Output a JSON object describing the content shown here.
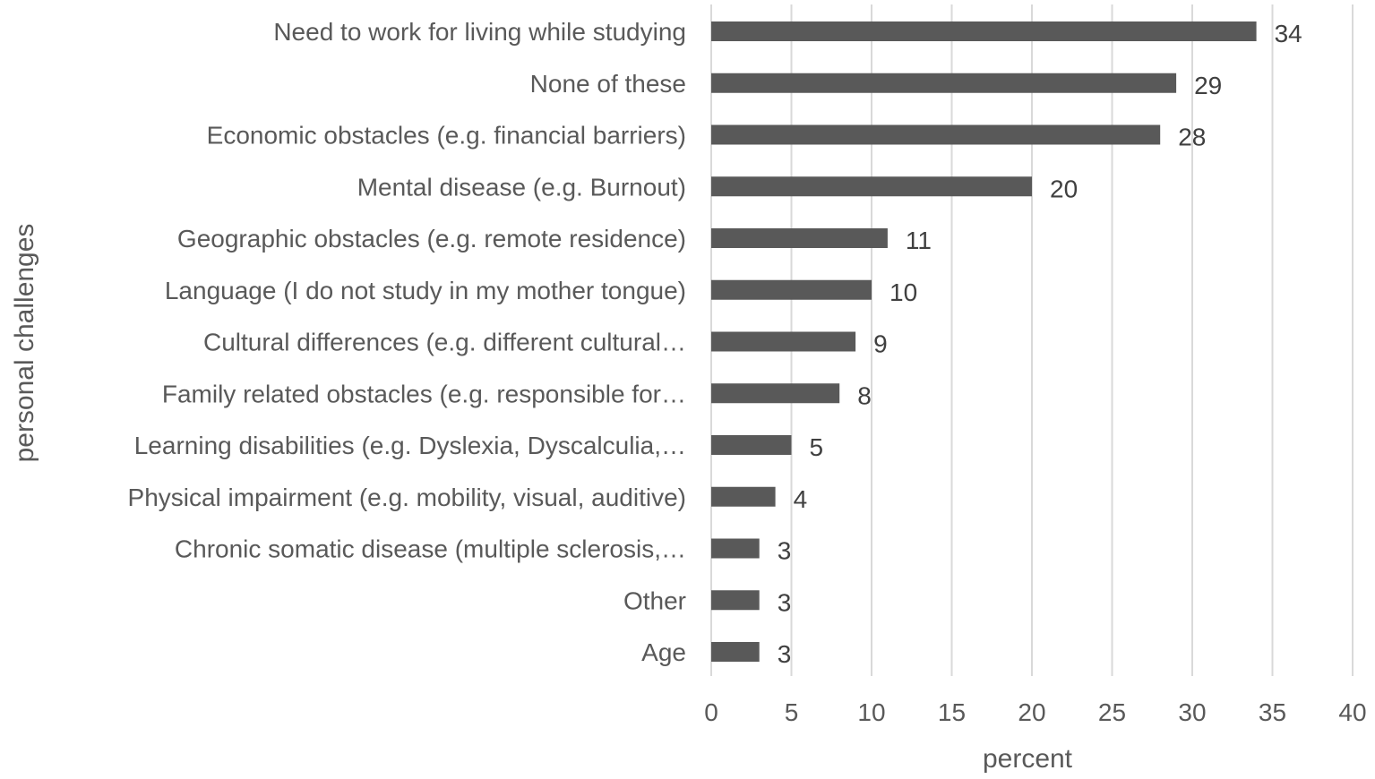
{
  "chart_data": {
    "type": "bar",
    "orientation": "horizontal",
    "categories": [
      "Need to work for living while studying",
      "None of these",
      "Economic obstacles (e.g. financial barriers)",
      "Mental disease (e.g. Burnout)",
      "Geographic obstacles (e.g. remote residence)",
      "Language (I do not study in my mother tongue)",
      "Cultural differences (e.g. different cultural…",
      "Family related obstacles (e.g. responsible for…",
      "Learning disabilities (e.g. Dyslexia, Dyscalculia,…",
      "Physical impairment (e.g. mobility, visual, auditive)",
      "Chronic somatic disease (multiple sclerosis,…",
      "Other",
      "Age"
    ],
    "values": [
      34,
      29,
      28,
      20,
      11,
      10,
      9,
      8,
      5,
      4,
      3,
      3,
      3
    ],
    "data_labels": [
      "34",
      "29",
      "28",
      "20",
      "11",
      "10",
      "9",
      "8",
      "5",
      "4",
      "3",
      "3",
      "3"
    ],
    "xlabel": "percent",
    "ylabel": "personal challenges",
    "xlim": [
      0,
      40
    ],
    "xticks": [
      "0",
      "5",
      "10",
      "15",
      "20",
      "25",
      "30",
      "35",
      "40"
    ],
    "grid": "vertical",
    "bar_color": "#595959",
    "legend": "none"
  }
}
